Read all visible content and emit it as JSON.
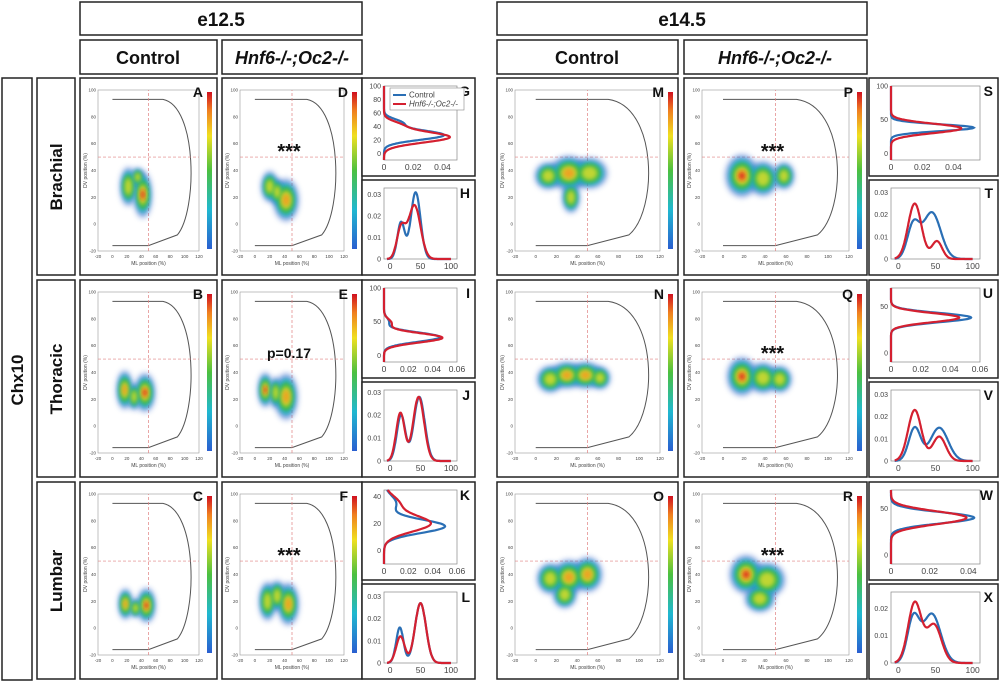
{
  "header": {
    "stages": [
      "e12.5",
      "e14.5"
    ],
    "conditions": [
      "Control",
      "Hnf6-/-;Oc2-/-"
    ],
    "marker": "Chx10",
    "regions": [
      "Brachial",
      "Thoracic",
      "Lumbar"
    ]
  },
  "colors": {
    "control": "#2a6fb5",
    "mutant": "#d42030",
    "outline": "#555555",
    "guide": "#e08080"
  },
  "density_axes": {
    "x_label": "ML position (%)",
    "y_label": "DV position (%)",
    "x_ticks": [
      "-20",
      "0",
      "20",
      "40",
      "60",
      "80",
      "100",
      "120"
    ],
    "y_ticks": [
      "-20",
      "0",
      "20",
      "40",
      "60",
      "80",
      "100"
    ]
  },
  "panels": {
    "A": {
      "label": "A",
      "stage": "e12.5",
      "condition": "Control",
      "region": "Brachial",
      "stat": "",
      "blobs": [
        [
          22,
          28,
          8,
          10,
          0.8
        ],
        [
          42,
          22,
          9,
          12,
          1.0
        ],
        [
          35,
          35,
          6,
          5,
          0.5
        ]
      ]
    },
    "B": {
      "label": "B",
      "stage": "e12.5",
      "condition": "Control",
      "region": "Thoracic",
      "stat": "",
      "blobs": [
        [
          17,
          27,
          8,
          10,
          0.9
        ],
        [
          45,
          25,
          10,
          10,
          1.0
        ],
        [
          30,
          22,
          6,
          7,
          0.5
        ]
      ]
    },
    "C": {
      "label": "C",
      "stage": "e12.5",
      "condition": "Control",
      "region": "Lumbar",
      "stat": "",
      "blobs": [
        [
          18,
          18,
          7,
          8,
          0.9
        ],
        [
          47,
          17,
          9,
          9,
          1.0
        ],
        [
          32,
          15,
          6,
          5,
          0.4
        ]
      ]
    },
    "D": {
      "label": "D",
      "stage": "e12.5",
      "condition": "Hnf6-/-;Oc2-/-",
      "region": "Brachial",
      "stat": "***",
      "blobs": [
        [
          20,
          28,
          8,
          8,
          0.8
        ],
        [
          42,
          18,
          12,
          11,
          0.9
        ],
        [
          30,
          24,
          7,
          7,
          0.6
        ]
      ]
    },
    "E": {
      "label": "E",
      "stage": "e12.5",
      "condition": "Hnf6-/-;Oc2-/-",
      "region": "Thoracic",
      "stat": "p=0.17",
      "blobs": [
        [
          14,
          27,
          7,
          9,
          1.0
        ],
        [
          42,
          22,
          11,
          12,
          0.9
        ],
        [
          28,
          25,
          6,
          8,
          0.6
        ]
      ]
    },
    "F": {
      "label": "F",
      "stage": "e12.5",
      "condition": "Hnf6-/-;Oc2-/-",
      "region": "Lumbar",
      "stat": "***",
      "blobs": [
        [
          17,
          20,
          8,
          10,
          0.8
        ],
        [
          45,
          18,
          10,
          11,
          0.9
        ],
        [
          30,
          24,
          8,
          8,
          0.6
        ]
      ]
    },
    "M": {
      "label": "M",
      "stage": "e14.5",
      "condition": "Control",
      "region": "Brachial",
      "stat": "",
      "blobs": [
        [
          12,
          36,
          9,
          7,
          0.7
        ],
        [
          32,
          38,
          13,
          9,
          0.9
        ],
        [
          52,
          38,
          12,
          8,
          0.8
        ],
        [
          34,
          20,
          6,
          8,
          0.5
        ]
      ]
    },
    "N": {
      "label": "N",
      "stage": "e14.5",
      "condition": "Control",
      "region": "Thoracic",
      "stat": "",
      "blobs": [
        [
          14,
          35,
          9,
          7,
          0.8
        ],
        [
          30,
          38,
          11,
          7,
          0.9
        ],
        [
          48,
          38,
          11,
          7,
          0.9
        ],
        [
          62,
          36,
          7,
          6,
          0.5
        ]
      ]
    },
    "O": {
      "label": "O",
      "stage": "e14.5",
      "condition": "Control",
      "region": "Lumbar",
      "stat": "",
      "blobs": [
        [
          14,
          37,
          9,
          8,
          0.8
        ],
        [
          32,
          38,
          11,
          9,
          0.9
        ],
        [
          50,
          40,
          10,
          9,
          0.9
        ],
        [
          28,
          25,
          8,
          7,
          0.5
        ]
      ]
    },
    "P": {
      "label": "P",
      "stage": "e14.5",
      "condition": "Hnf6-/-;Oc2-/-",
      "region": "Brachial",
      "stat": "***",
      "blobs": [
        [
          18,
          36,
          11,
          11,
          1.0
        ],
        [
          38,
          34,
          10,
          9,
          0.8
        ],
        [
          58,
          36,
          7,
          7,
          0.6
        ]
      ]
    },
    "Q": {
      "label": "Q",
      "stage": "e14.5",
      "condition": "Hnf6-/-;Oc2-/-",
      "region": "Thoracic",
      "stat": "***",
      "blobs": [
        [
          18,
          37,
          10,
          10,
          1.0
        ],
        [
          38,
          36,
          10,
          8,
          0.8
        ],
        [
          54,
          35,
          8,
          7,
          0.7
        ]
      ]
    },
    "R": {
      "label": "R",
      "stage": "e14.5",
      "condition": "Hnf6-/-;Oc2-/-",
      "region": "Lumbar",
      "stat": "***",
      "blobs": [
        [
          22,
          40,
          11,
          10,
          1.0
        ],
        [
          42,
          36,
          12,
          9,
          0.8
        ],
        [
          35,
          22,
          10,
          7,
          0.6
        ]
      ]
    }
  },
  "chart_data": [
    {
      "panel": "G",
      "type": "line",
      "orientation": "dv",
      "x_ticks": [
        "0",
        "0.02",
        "0.04"
      ],
      "y_ticks": [
        "0",
        "20",
        "40",
        "60",
        "80",
        "100"
      ],
      "xlim": [
        0,
        0.05
      ],
      "ylim": [
        -10,
        100
      ],
      "legend": {
        "position": "top",
        "entries": [
          "Control",
          "Hnf6-/-;Oc2-/-"
        ]
      },
      "series": [
        {
          "name": "Control",
          "peaks": [
            [
              27,
              0.041,
              7
            ],
            [
              45,
              0.012,
              6
            ]
          ]
        },
        {
          "name": "Hnf6-/-;Oc2-/-",
          "peaks": [
            [
              24,
              0.045,
              8
            ],
            [
              42,
              0.01,
              6
            ]
          ]
        }
      ]
    },
    {
      "panel": "H",
      "type": "line",
      "orientation": "ml",
      "x_ticks": [
        "0",
        "50",
        "100"
      ],
      "y_ticks": [
        "0",
        "0.01",
        "0.02",
        "0.03"
      ],
      "xlim": [
        -10,
        110
      ],
      "ylim": [
        0,
        0.033
      ],
      "series": [
        {
          "name": "Control",
          "peaks": [
            [
              18,
              0.017,
              6
            ],
            [
              42,
              0.031,
              8
            ]
          ]
        },
        {
          "name": "Hnf6-/-;Oc2-/-",
          "peaks": [
            [
              18,
              0.014,
              7
            ],
            [
              40,
              0.025,
              10
            ]
          ]
        }
      ]
    },
    {
      "panel": "I",
      "type": "line",
      "orientation": "dv",
      "x_ticks": [
        "0",
        "0.02",
        "0.04",
        "0.06"
      ],
      "y_ticks": [
        "0",
        "50",
        "100"
      ],
      "xlim": [
        0,
        0.06
      ],
      "ylim": [
        -10,
        100
      ],
      "series": [
        {
          "name": "Control",
          "peaks": [
            [
              27,
              0.046,
              7
            ],
            [
              50,
              0.004,
              6
            ]
          ]
        },
        {
          "name": "Hnf6-/-;Oc2-/-",
          "peaks": [
            [
              26,
              0.048,
              7
            ],
            [
              48,
              0.006,
              6
            ]
          ]
        }
      ]
    },
    {
      "panel": "J",
      "type": "line",
      "orientation": "ml",
      "x_ticks": [
        "0",
        "50",
        "100"
      ],
      "y_ticks": [
        "0",
        "0.01",
        "0.02",
        "0.03"
      ],
      "xlim": [
        -10,
        110
      ],
      "ylim": [
        0,
        0.031
      ],
      "series": [
        {
          "name": "Control",
          "peaks": [
            [
              18,
              0.02,
              7
            ],
            [
              48,
              0.028,
              9
            ]
          ]
        },
        {
          "name": "Hnf6-/-;Oc2-/-",
          "peaks": [
            [
              17,
              0.021,
              7
            ],
            [
              47,
              0.028,
              9
            ]
          ]
        }
      ]
    },
    {
      "panel": "K",
      "type": "line",
      "orientation": "dv",
      "x_ticks": [
        "0",
        "0.02",
        "0.04",
        "0.06"
      ],
      "y_ticks": [
        "0",
        "20",
        "40"
      ],
      "xlim": [
        0,
        0.06
      ],
      "ylim": [
        -10,
        45
      ],
      "series": [
        {
          "name": "Control",
          "peaks": [
            [
              18,
              0.05,
              5
            ],
            [
              35,
              0.01,
              6
            ]
          ]
        },
        {
          "name": "Hnf6-/-;Oc2-/-",
          "peaks": [
            [
              20,
              0.038,
              6
            ],
            [
              35,
              0.012,
              6
            ]
          ]
        }
      ]
    },
    {
      "panel": "L",
      "type": "line",
      "orientation": "ml",
      "x_ticks": [
        "0",
        "50",
        "100"
      ],
      "y_ticks": [
        "0",
        "0.01",
        "0.02",
        "0.03"
      ],
      "xlim": [
        -10,
        110
      ],
      "ylim": [
        0,
        0.032
      ],
      "series": [
        {
          "name": "Control",
          "peaks": [
            [
              16,
              0.016,
              6
            ],
            [
              50,
              0.027,
              9
            ]
          ]
        },
        {
          "name": "Hnf6-/-;Oc2-/-",
          "peaks": [
            [
              17,
              0.012,
              7
            ],
            [
              50,
              0.027,
              9
            ]
          ]
        }
      ]
    },
    {
      "panel": "S",
      "type": "line",
      "orientation": "dv",
      "x_ticks": [
        "0",
        "0.02",
        "0.04"
      ],
      "y_ticks": [
        "0",
        "50",
        "100"
      ],
      "xlim": [
        0,
        0.057
      ],
      "ylim": [
        -10,
        100
      ],
      "series": [
        {
          "name": "Control",
          "peaks": [
            [
              38,
              0.053,
              5
            ]
          ]
        },
        {
          "name": "Hnf6-/-;Oc2-/-",
          "peaks": [
            [
              37,
              0.045,
              7
            ]
          ]
        }
      ]
    },
    {
      "panel": "T",
      "type": "line",
      "orientation": "ml",
      "x_ticks": [
        "0",
        "50",
        "100"
      ],
      "y_ticks": [
        "0",
        "0.01",
        "0.02",
        "0.03"
      ],
      "xlim": [
        -10,
        110
      ],
      "ylim": [
        0,
        0.032
      ],
      "series": [
        {
          "name": "Control",
          "peaks": [
            [
              20,
              0.015,
              8
            ],
            [
              45,
              0.021,
              12
            ]
          ]
        },
        {
          "name": "Hnf6-/-;Oc2-/-",
          "peaks": [
            [
              22,
              0.025,
              9
            ],
            [
              52,
              0.008,
              7
            ]
          ]
        }
      ]
    },
    {
      "panel": "U",
      "type": "line",
      "orientation": "dv",
      "x_ticks": [
        "0",
        "0.02",
        "0.04",
        "0.06"
      ],
      "y_ticks": [
        "0",
        "50"
      ],
      "xlim": [
        0,
        0.06
      ],
      "ylim": [
        -10,
        70
      ],
      "series": [
        {
          "name": "Control",
          "peaks": [
            [
              38,
              0.054,
              5
            ]
          ]
        },
        {
          "name": "Hnf6-/-;Oc2-/-",
          "peaks": [
            [
              38,
              0.046,
              5
            ]
          ]
        }
      ]
    },
    {
      "panel": "V",
      "type": "line",
      "orientation": "ml",
      "x_ticks": [
        "0",
        "50",
        "100"
      ],
      "y_ticks": [
        "0",
        "0.01",
        "0.02",
        "0.03"
      ],
      "xlim": [
        -10,
        110
      ],
      "ylim": [
        0,
        0.032
      ],
      "series": [
        {
          "name": "Control",
          "peaks": [
            [
              22,
              0.015,
              8
            ],
            [
              55,
              0.015,
              12
            ]
          ]
        },
        {
          "name": "Hnf6-/-;Oc2-/-",
          "peaks": [
            [
              22,
              0.023,
              9
            ],
            [
              55,
              0.011,
              9
            ]
          ]
        }
      ]
    },
    {
      "panel": "W",
      "type": "line",
      "orientation": "dv",
      "x_ticks": [
        "0",
        "0.02",
        "0.04"
      ],
      "y_ticks": [
        "0",
        "50"
      ],
      "xlim": [
        0,
        0.046
      ],
      "ylim": [
        -10,
        70
      ],
      "series": [
        {
          "name": "Control",
          "peaks": [
            [
              40,
              0.043,
              6
            ]
          ]
        },
        {
          "name": "Hnf6-/-;Oc2-/-",
          "peaks": [
            [
              40,
              0.039,
              7
            ]
          ]
        }
      ]
    },
    {
      "panel": "X",
      "type": "line",
      "orientation": "ml",
      "x_ticks": [
        "0",
        "50",
        "100"
      ],
      "y_ticks": [
        "0",
        "0.01",
        "0.02"
      ],
      "xlim": [
        -10,
        110
      ],
      "ylim": [
        0,
        0.026
      ],
      "series": [
        {
          "name": "Control",
          "peaks": [
            [
              20,
              0.016,
              8
            ],
            [
              45,
              0.018,
              12
            ]
          ]
        },
        {
          "name": "Hnf6-/-;Oc2-/-",
          "peaks": [
            [
              22,
              0.022,
              9
            ],
            [
              48,
              0.014,
              10
            ]
          ]
        }
      ]
    }
  ]
}
